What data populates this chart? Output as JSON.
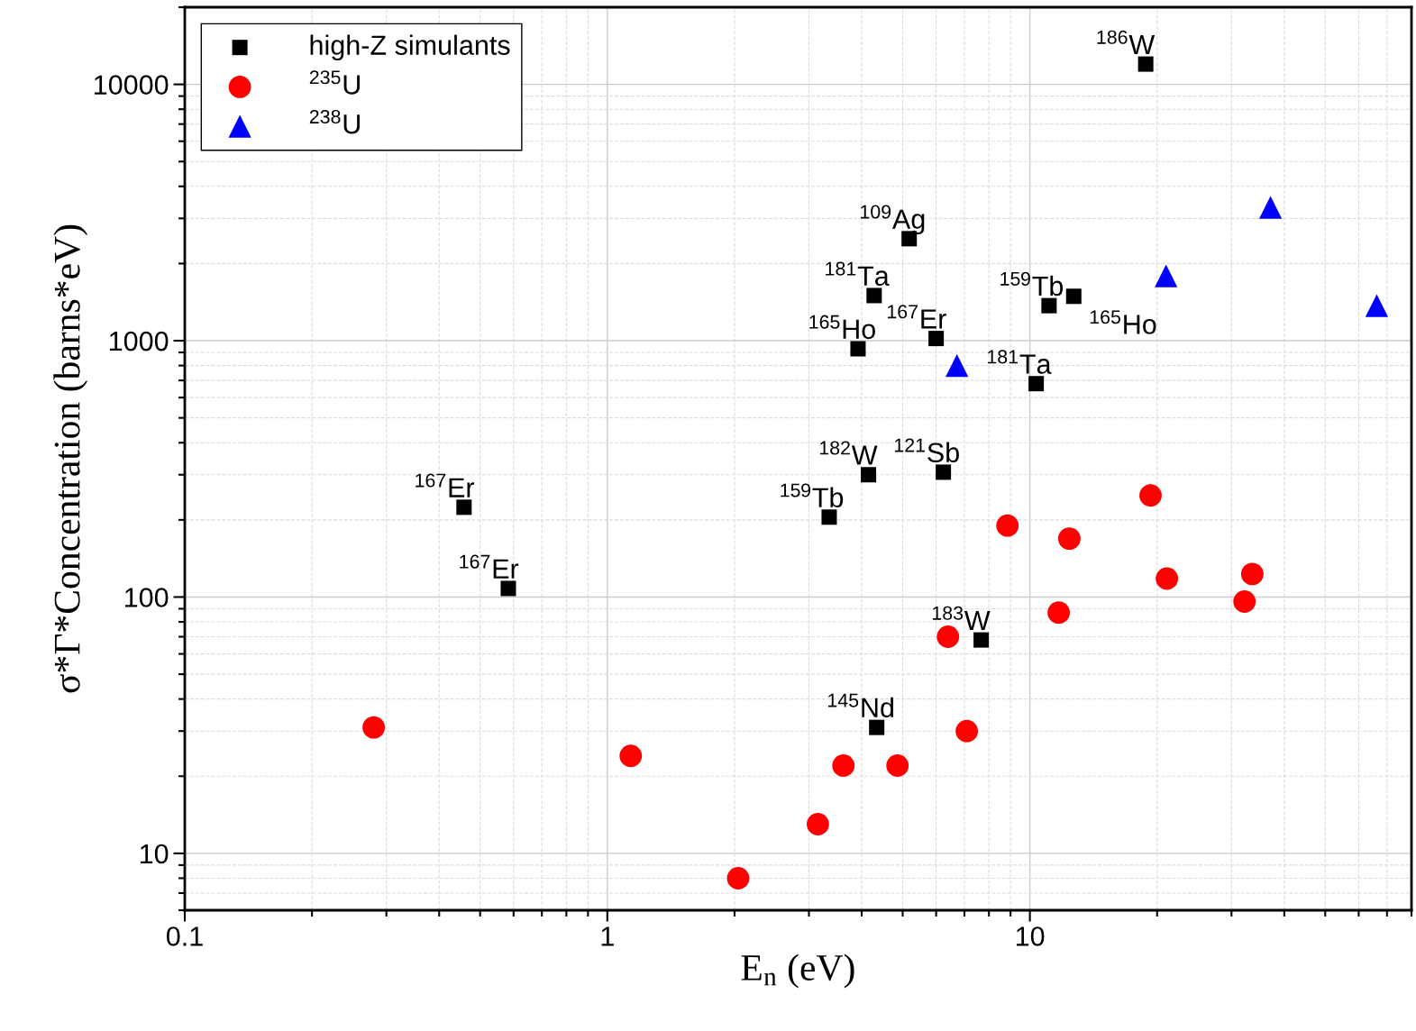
{
  "chart_data": {
    "type": "scatter",
    "xlabel": "E$_{n}$ (eV)",
    "ylabel": "σ*Γ*Concentration (barns*eV)",
    "log": "xy",
    "xlim": [
      0.1,
      80
    ],
    "ylim": [
      6,
      20000
    ],
    "xticks": [
      0.1,
      1,
      10
    ],
    "yticks": [
      10,
      100,
      1000,
      10000
    ],
    "grid": true,
    "legend": "top left",
    "series": [
      {
        "name": "high-Z simulants",
        "color": "#000000",
        "marker": "square",
        "x": [
          18.8,
          5.18,
          4.28,
          11.1,
          12.7,
          3.92,
          6.0,
          10.35,
          4.15,
          6.24,
          3.35,
          0.458,
          0.583,
          7.67,
          4.34
        ],
        "values": [
          12000,
          2500,
          1500,
          1370,
          1490,
          930,
          1020,
          680,
          300,
          307,
          205,
          224,
          108,
          68,
          31
        ]
      },
      {
        "name": "$^{235}$U",
        "color": "#ff0000",
        "marker": "circle",
        "x": [
          0.28,
          1.136,
          2.04,
          3.15,
          3.62,
          4.86,
          6.4,
          7.09,
          8.85,
          11.7,
          12.4,
          19.3,
          21.1,
          32.2,
          33.6
        ],
        "values": [
          31,
          24,
          8,
          13,
          22,
          22,
          70,
          30,
          190,
          87,
          169,
          249,
          118,
          96,
          123
        ]
      },
      {
        "name": "$^{238}$U",
        "color": "#0000ff",
        "marker": "triangle",
        "x": [
          6.72,
          21.0,
          37.1,
          66.2
        ],
        "values": [
          800,
          1790,
          3310,
          1370
        ]
      }
    ],
    "annotations": [
      {
        "text": "$^{186}$W",
        "x": 18.8,
        "y": 12000
      },
      {
        "text": "$^{109}$Ag",
        "x": 5.18,
        "y": 2500
      },
      {
        "text": "$^{181}$Ta",
        "x": 4.28,
        "y": 1500
      },
      {
        "text": "$^{159}$Tb",
        "x": 11.1,
        "y": 1370
      },
      {
        "text": "$^{165}$Ho",
        "x": 12.7,
        "y": 1490
      },
      {
        "text": "$^{165}$Ho",
        "x": 3.92,
        "y": 930
      },
      {
        "text": "$^{167}$Er",
        "x": 6.0,
        "y": 1020
      },
      {
        "text": "$^{181}$Ta",
        "x": 10.35,
        "y": 680
      },
      {
        "text": "$^{182}$W",
        "x": 4.15,
        "y": 300
      },
      {
        "text": "$^{121}$Sb",
        "x": 6.24,
        "y": 307
      },
      {
        "text": "$^{159}$Tb",
        "x": 3.35,
        "y": 205
      },
      {
        "text": "$^{167}$Er",
        "x": 0.458,
        "y": 224
      },
      {
        "text": "$^{167}$Er",
        "x": 0.583,
        "y": 108
      },
      {
        "text": "$^{183}$W",
        "x": 7.67,
        "y": 68
      },
      {
        "text": "$^{145}$Nd",
        "x": 4.34,
        "y": 31
      }
    ]
  }
}
